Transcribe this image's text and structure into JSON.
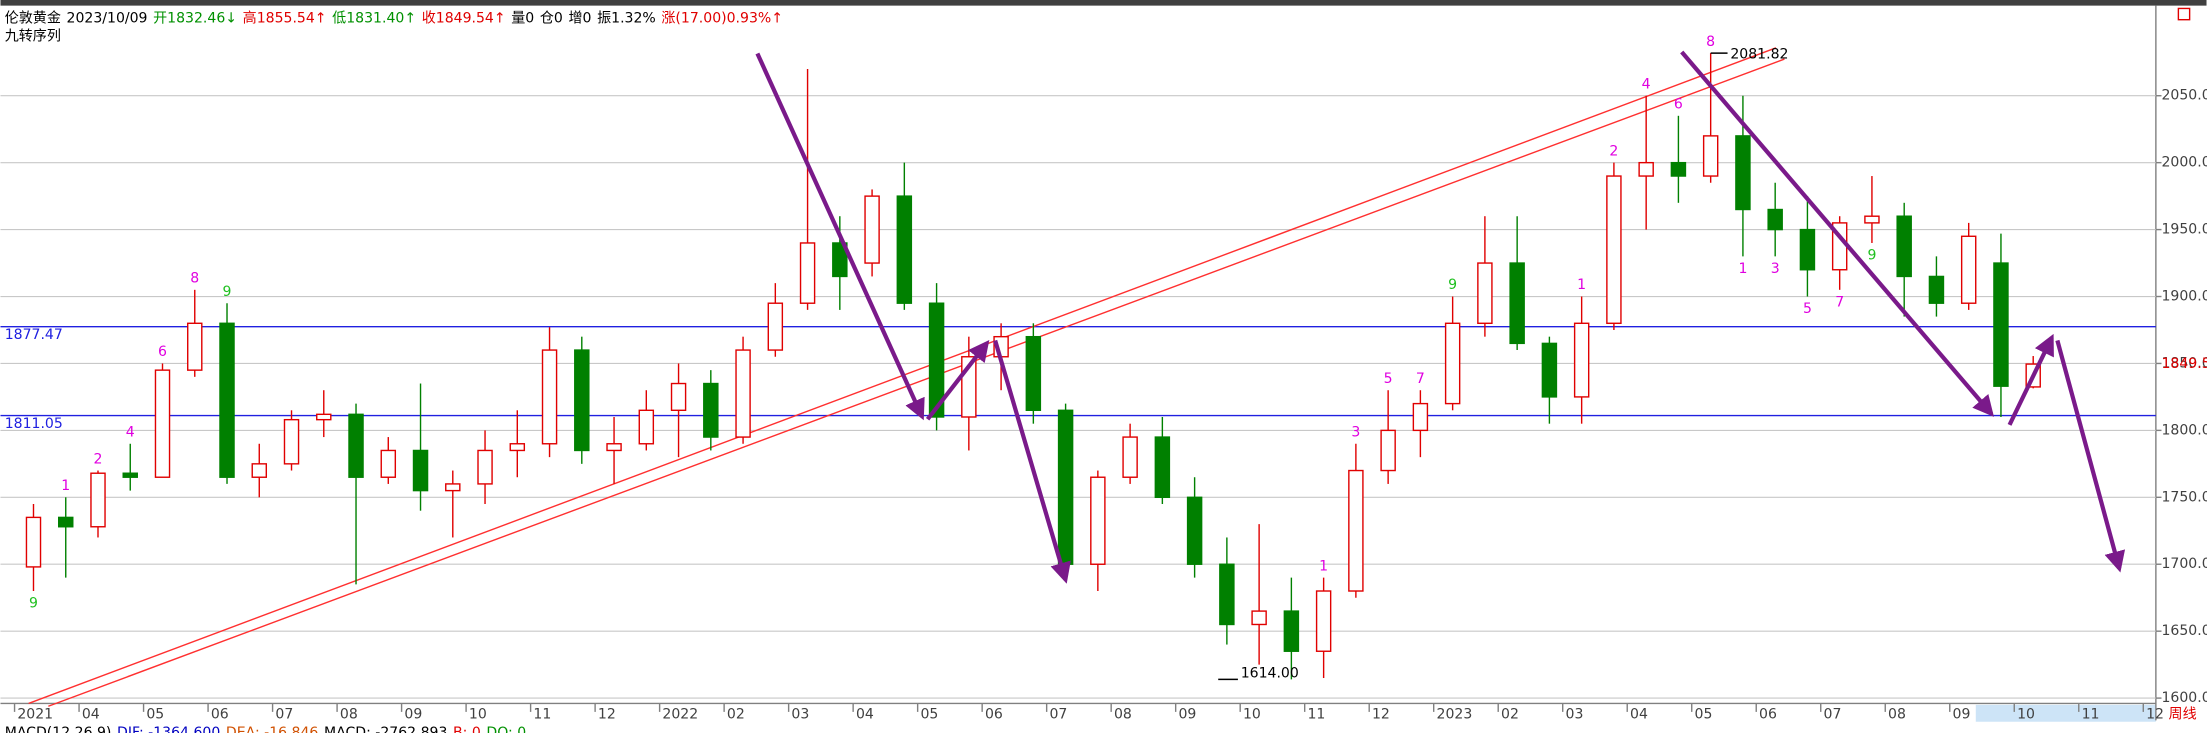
{
  "chart_data": {
    "type": "candlestick",
    "header": [
      {
        "text": "伦敦黄金",
        "color": "#000000"
      },
      {
        "text": "2023/10/09",
        "color": "#000000"
      },
      {
        "text": "开1832.46↓",
        "color": "#009000"
      },
      {
        "text": "高1855.54↑",
        "color": "#e00000"
      },
      {
        "text": "低1831.40↑",
        "color": "#009000"
      },
      {
        "text": "收1849.54↑",
        "color": "#e00000"
      },
      {
        "text": "量0",
        "color": "#000000"
      },
      {
        "text": "仓0",
        "color": "#000000"
      },
      {
        "text": "增0",
        "color": "#000000"
      },
      {
        "text": "振1.32%",
        "color": "#000000"
      },
      {
        "text": "涨(17.00)0.93%↑",
        "color": "#e00000"
      }
    ],
    "indicator": "九转序列",
    "footer": [
      {
        "text": "MACD(12,26,9)",
        "color": "#000000"
      },
      {
        "text": "DIF: -1364.600",
        "color": "#0000c0"
      },
      {
        "text": "DEA: -16.846",
        "color": "#d05000"
      },
      {
        "text": "MACD: -2762.893",
        "color": "#000000"
      },
      {
        "text": "B: 0",
        "color": "#e00000"
      },
      {
        "text": "DO: 0",
        "color": "#009000"
      }
    ],
    "period": "周线",
    "up_color": "#e00000",
    "down_color": "#008000",
    "td_color": "#e000e0",
    "td_final": "9",
    "td_final_color": "#20c020",
    "level_color": "#2020e0",
    "levels": [
      1877.47,
      1811.05
    ],
    "ylim": [
      1596,
      2111
    ],
    "yticks": [
      {
        "value": 1600,
        "label": "1600.00"
      },
      {
        "value": 1650,
        "label": "1650.00"
      },
      {
        "value": 1700,
        "label": "1700.00"
      },
      {
        "value": 1750,
        "label": "1750.00"
      },
      {
        "value": 1800,
        "label": "1800.00"
      },
      {
        "value": 1850,
        "label": "1850.00"
      },
      {
        "value": 1900,
        "label": "1900.00"
      },
      {
        "value": 1950,
        "label": "1950.00"
      },
      {
        "value": 2000,
        "label": "2000.00"
      },
      {
        "value": 2050,
        "label": "2050.00"
      }
    ],
    "months": [
      {
        "label": "2021",
        "candles": [
          [
            1698,
            1745,
            1680,
            1735
          ],
          [
            1735,
            1750,
            1690,
            1728
          ]
        ],
        "td_down": [
          "9",
          null
        ],
        "td_up": [
          null,
          "1"
        ]
      },
      {
        "label": "04",
        "candles": [
          [
            1728,
            1770,
            1720,
            1768
          ],
          [
            1768,
            1790,
            1755,
            1765
          ]
        ],
        "td_up": [
          "2",
          "4"
        ]
      },
      {
        "label": "05",
        "candles": [
          [
            1765,
            1850,
            1765,
            1845
          ],
          [
            1845,
            1905,
            1840,
            1880
          ]
        ],
        "td_up": [
          "6",
          "8"
        ]
      },
      {
        "label": "06",
        "candles": [
          [
            1880,
            1895,
            1760,
            1765
          ],
          [
            1765,
            1790,
            1750,
            1775
          ]
        ],
        "td_up": [
          "9",
          null
        ]
      },
      {
        "label": "07",
        "candles": [
          [
            1775,
            1815,
            1770,
            1808
          ],
          [
            1808,
            1830,
            1795,
            1812
          ]
        ]
      },
      {
        "label": "08",
        "candles": [
          [
            1812,
            1820,
            1685,
            1765
          ],
          [
            1765,
            1795,
            1760,
            1785
          ]
        ]
      },
      {
        "label": "09",
        "candles": [
          [
            1785,
            1835,
            1740,
            1755
          ],
          [
            1755,
            1770,
            1720,
            1760
          ]
        ]
      },
      {
        "label": "10",
        "candles": [
          [
            1760,
            1800,
            1745,
            1785
          ],
          [
            1785,
            1815,
            1765,
            1790
          ]
        ]
      },
      {
        "label": "11",
        "candles": [
          [
            1790,
            1877,
            1780,
            1860
          ],
          [
            1860,
            1870,
            1775,
            1785
          ]
        ]
      },
      {
        "label": "12",
        "candles": [
          [
            1785,
            1810,
            1760,
            1790
          ],
          [
            1790,
            1830,
            1785,
            1815
          ]
        ]
      },
      {
        "label": "2022",
        "candles": [
          [
            1815,
            1850,
            1780,
            1835
          ],
          [
            1835,
            1845,
            1785,
            1795
          ]
        ]
      },
      {
        "label": "02",
        "candles": [
          [
            1795,
            1870,
            1790,
            1860
          ],
          [
            1860,
            1910,
            1855,
            1895
          ]
        ]
      },
      {
        "label": "03",
        "candles": [
          [
            1895,
            2070,
            1890,
            1940
          ],
          [
            1940,
            1960,
            1890,
            1915
          ]
        ]
      },
      {
        "label": "04",
        "candles": [
          [
            1925,
            1980,
            1915,
            1975
          ],
          [
            1975,
            2000,
            1890,
            1895
          ]
        ]
      },
      {
        "label": "05",
        "candles": [
          [
            1895,
            1910,
            1800,
            1810
          ],
          [
            1810,
            1870,
            1785,
            1855
          ]
        ]
      },
      {
        "label": "06",
        "candles": [
          [
            1855,
            1880,
            1830,
            1870
          ],
          [
            1870,
            1880,
            1805,
            1815
          ]
        ]
      },
      {
        "label": "07",
        "candles": [
          [
            1815,
            1820,
            1690,
            1700
          ],
          [
            1700,
            1770,
            1680,
            1765
          ]
        ]
      },
      {
        "label": "08",
        "candles": [
          [
            1765,
            1805,
            1760,
            1795
          ],
          [
            1795,
            1810,
            1745,
            1750
          ]
        ]
      },
      {
        "label": "09",
        "candles": [
          [
            1750,
            1765,
            1690,
            1700
          ],
          [
            1700,
            1720,
            1640,
            1655
          ]
        ]
      },
      {
        "label": "10",
        "candles": [
          [
            1655,
            1730,
            1625,
            1665
          ],
          [
            1665,
            1690,
            1614,
            1635
          ]
        ],
        "low_label": "1614.00"
      },
      {
        "label": "11",
        "candles": [
          [
            1635,
            1690,
            1615,
            1680
          ],
          [
            1680,
            1790,
            1675,
            1770
          ]
        ],
        "td_up": [
          "1",
          "3"
        ]
      },
      {
        "label": "12",
        "candles": [
          [
            1770,
            1830,
            1760,
            1800
          ],
          [
            1800,
            1830,
            1780,
            1820
          ]
        ],
        "td_up": [
          "5",
          "7"
        ]
      },
      {
        "label": "2023",
        "candles": [
          [
            1820,
            1900,
            1815,
            1880
          ],
          [
            1880,
            1960,
            1870,
            1925
          ]
        ],
        "td_up": [
          "9",
          null
        ]
      },
      {
        "label": "02",
        "candles": [
          [
            1925,
            1960,
            1860,
            1865
          ],
          [
            1865,
            1870,
            1805,
            1825
          ]
        ]
      },
      {
        "label": "03",
        "candles": [
          [
            1825,
            1900,
            1805,
            1880
          ],
          [
            1880,
            2000,
            1875,
            1990
          ]
        ],
        "td_up": [
          "1",
          "2"
        ]
      },
      {
        "label": "04",
        "candles": [
          [
            1990,
            2050,
            1950,
            2000
          ],
          [
            2000,
            2035,
            1970,
            1990
          ]
        ],
        "td_up": [
          "4",
          "6"
        ]
      },
      {
        "label": "05",
        "candles": [
          [
            1990,
            2081.82,
            1985,
            2020
          ],
          [
            2020,
            2050,
            1930,
            1965
          ]
        ],
        "td_up": [
          "8",
          null
        ],
        "td_down": [
          null,
          "1"
        ],
        "high_label": "2081.82"
      },
      {
        "label": "06",
        "candles": [
          [
            1965,
            1985,
            1930,
            1950
          ],
          [
            1950,
            1975,
            1900,
            1920
          ]
        ],
        "td_down": [
          "3",
          "5"
        ]
      },
      {
        "label": "07",
        "candles": [
          [
            1920,
            1960,
            1905,
            1955
          ],
          [
            1955,
            1990,
            1940,
            1960
          ]
        ],
        "td_down": [
          "7",
          "9"
        ]
      },
      {
        "label": "08",
        "candles": [
          [
            1960,
            1970,
            1885,
            1915
          ],
          [
            1915,
            1930,
            1885,
            1895
          ]
        ]
      },
      {
        "label": "09",
        "candles": [
          [
            1895,
            1955,
            1890,
            1945
          ],
          [
            1925,
            1947,
            1810,
            1833
          ]
        ]
      },
      {
        "label": "10",
        "candles": [
          [
            1832.46,
            1855.54,
            1831.4,
            1849.54
          ]
        ]
      },
      {
        "label": "11",
        "candles": []
      },
      {
        "label": "12",
        "candles": []
      }
    ]
  }
}
